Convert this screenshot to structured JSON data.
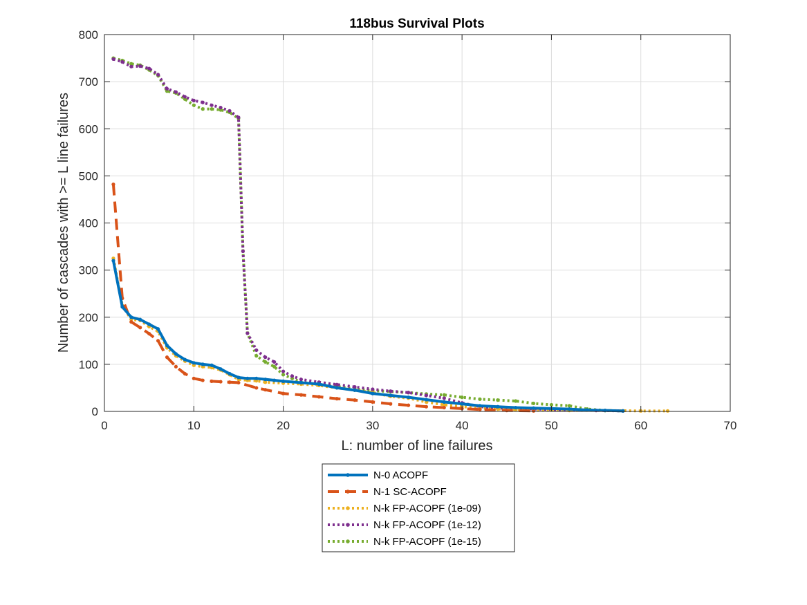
{
  "chart_data": {
    "type": "line",
    "title": "118bus Survival Plots",
    "xlabel": "L: number of line failures",
    "ylabel": "Number of cascades with >= L line failures",
    "xlim": [
      0,
      70
    ],
    "ylim": [
      0,
      800
    ],
    "xticks": [
      "0",
      "10",
      "20",
      "30",
      "40",
      "50",
      "60",
      "70"
    ],
    "yticks": [
      "0",
      "100",
      "200",
      "300",
      "400",
      "500",
      "600",
      "700",
      "800"
    ],
    "grid": true,
    "legend_position": "below plot, centered",
    "series": [
      {
        "name": "N-0 ACOPF",
        "color": "#0072BD",
        "style": "solid",
        "points": [
          [
            1,
            320
          ],
          [
            2,
            222
          ],
          [
            3,
            200
          ],
          [
            4,
            195
          ],
          [
            5,
            185
          ],
          [
            6,
            175
          ],
          [
            7,
            140
          ],
          [
            8,
            122
          ],
          [
            9,
            110
          ],
          [
            10,
            103
          ],
          [
            11,
            100
          ],
          [
            12,
            98
          ],
          [
            13,
            90
          ],
          [
            14,
            80
          ],
          [
            15,
            72
          ],
          [
            16,
            70
          ],
          [
            17,
            70
          ],
          [
            18,
            68
          ],
          [
            19,
            66
          ],
          [
            20,
            64
          ],
          [
            22,
            61
          ],
          [
            24,
            58
          ],
          [
            26,
            50
          ],
          [
            28,
            45
          ],
          [
            30,
            38
          ],
          [
            32,
            34
          ],
          [
            34,
            30
          ],
          [
            36,
            25
          ],
          [
            38,
            20
          ],
          [
            40,
            16
          ],
          [
            42,
            12
          ],
          [
            44,
            10
          ],
          [
            46,
            8
          ],
          [
            48,
            7
          ],
          [
            50,
            6
          ],
          [
            52,
            5
          ],
          [
            54,
            3
          ],
          [
            56,
            2
          ],
          [
            58,
            1
          ]
        ]
      },
      {
        "name": "N-1 SC-ACOPF",
        "color": "#D95319",
        "style": "dashed",
        "points": [
          [
            1,
            482
          ],
          [
            2,
            240
          ],
          [
            3,
            190
          ],
          [
            4,
            178
          ],
          [
            5,
            165
          ],
          [
            6,
            150
          ],
          [
            7,
            115
          ],
          [
            8,
            95
          ],
          [
            9,
            80
          ],
          [
            10,
            70
          ],
          [
            11,
            66
          ],
          [
            12,
            64
          ],
          [
            13,
            63
          ],
          [
            14,
            62
          ],
          [
            15,
            61
          ],
          [
            17,
            50
          ],
          [
            18,
            46
          ],
          [
            20,
            38
          ],
          [
            22,
            35
          ],
          [
            24,
            31
          ],
          [
            26,
            27
          ],
          [
            28,
            24
          ],
          [
            30,
            20
          ],
          [
            32,
            16
          ],
          [
            34,
            13
          ],
          [
            36,
            10
          ],
          [
            38,
            8
          ],
          [
            40,
            6
          ],
          [
            42,
            4
          ],
          [
            45,
            2
          ],
          [
            48,
            1
          ]
        ]
      },
      {
        "name": "N-k FP-ACOPF (1e-09)",
        "color": "#EDB120",
        "style": "dotted",
        "points": [
          [
            1,
            325
          ],
          [
            2,
            225
          ],
          [
            3,
            195
          ],
          [
            4,
            193
          ],
          [
            5,
            180
          ],
          [
            6,
            170
          ],
          [
            7,
            135
          ],
          [
            8,
            118
          ],
          [
            9,
            107
          ],
          [
            10,
            98
          ],
          [
            11,
            95
          ],
          [
            12,
            93
          ],
          [
            13,
            88
          ],
          [
            14,
            78
          ],
          [
            15,
            68
          ],
          [
            16,
            66
          ],
          [
            17,
            65
          ],
          [
            18,
            62
          ],
          [
            20,
            60
          ],
          [
            22,
            58
          ],
          [
            24,
            55
          ],
          [
            26,
            50
          ],
          [
            28,
            45
          ],
          [
            30,
            40
          ],
          [
            32,
            32
          ],
          [
            34,
            28
          ],
          [
            36,
            20
          ],
          [
            38,
            14
          ],
          [
            40,
            10
          ],
          [
            42,
            7
          ],
          [
            44,
            5
          ],
          [
            46,
            4
          ],
          [
            48,
            3
          ],
          [
            50,
            3
          ],
          [
            52,
            2
          ],
          [
            56,
            2
          ],
          [
            60,
            1
          ],
          [
            63,
            1
          ]
        ]
      },
      {
        "name": "N-k FP-ACOPF (1e-12)",
        "color": "#7E2F8E",
        "style": "dotted",
        "points": [
          [
            1,
            748
          ],
          [
            2,
            742
          ],
          [
            3,
            732
          ],
          [
            4,
            733
          ],
          [
            5,
            728
          ],
          [
            6,
            715
          ],
          [
            7,
            685
          ],
          [
            8,
            678
          ],
          [
            9,
            668
          ],
          [
            10,
            660
          ],
          [
            11,
            656
          ],
          [
            12,
            650
          ],
          [
            13,
            645
          ],
          [
            14,
            638
          ],
          [
            15,
            624
          ],
          [
            15.5,
            340
          ],
          [
            16,
            166
          ],
          [
            17,
            130
          ],
          [
            18,
            115
          ],
          [
            19,
            105
          ],
          [
            20,
            85
          ],
          [
            21,
            75
          ],
          [
            22,
            68
          ],
          [
            24,
            62
          ],
          [
            26,
            57
          ],
          [
            28,
            52
          ],
          [
            30,
            47
          ],
          [
            32,
            43
          ],
          [
            34,
            40
          ],
          [
            36,
            34
          ],
          [
            38,
            28
          ],
          [
            40,
            18
          ],
          [
            42,
            10
          ],
          [
            44,
            7
          ],
          [
            46,
            6
          ],
          [
            48,
            5
          ],
          [
            50,
            4
          ],
          [
            52,
            3
          ],
          [
            55,
            2
          ],
          [
            58,
            1
          ]
        ]
      },
      {
        "name": "N-k FP-ACOPF (1e-15)",
        "color": "#77AC30",
        "style": "dotted",
        "points": [
          [
            1,
            750
          ],
          [
            2,
            745
          ],
          [
            3,
            738
          ],
          [
            4,
            735
          ],
          [
            5,
            725
          ],
          [
            6,
            713
          ],
          [
            7,
            680
          ],
          [
            8,
            676
          ],
          [
            9,
            663
          ],
          [
            10,
            650
          ],
          [
            11,
            642
          ],
          [
            12,
            642
          ],
          [
            13,
            640
          ],
          [
            14,
            635
          ],
          [
            15,
            622
          ],
          [
            15.5,
            340
          ],
          [
            16,
            166
          ],
          [
            17,
            118
          ],
          [
            18,
            105
          ],
          [
            19,
            95
          ],
          [
            20,
            78
          ],
          [
            21,
            70
          ],
          [
            22,
            62
          ],
          [
            24,
            57
          ],
          [
            26,
            53
          ],
          [
            28,
            48
          ],
          [
            30,
            44
          ],
          [
            32,
            42
          ],
          [
            34,
            40
          ],
          [
            36,
            37
          ],
          [
            38,
            35
          ],
          [
            40,
            30
          ],
          [
            42,
            26
          ],
          [
            44,
            24
          ],
          [
            46,
            22
          ],
          [
            48,
            17
          ],
          [
            50,
            14
          ],
          [
            52,
            12
          ],
          [
            54,
            5
          ],
          [
            56,
            2
          ],
          [
            58,
            1
          ]
        ]
      }
    ]
  }
}
